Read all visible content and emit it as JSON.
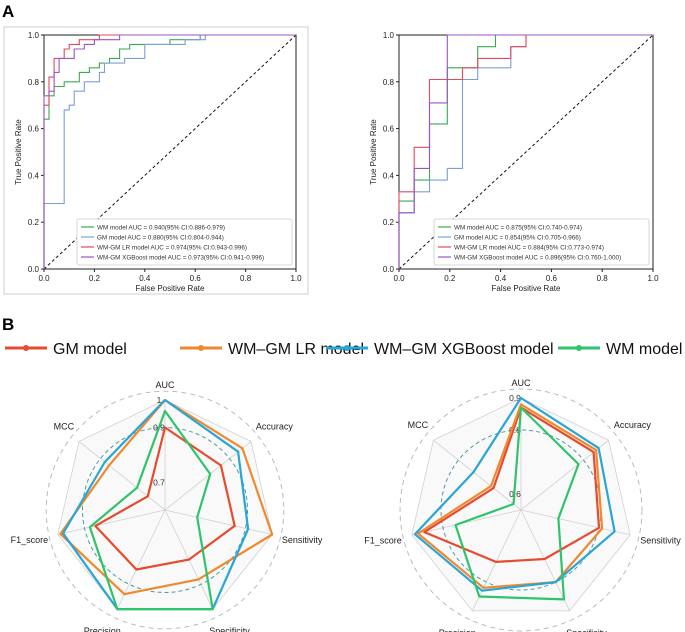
{
  "panels": {
    "a": "A",
    "b": "B"
  },
  "chart_data": [
    {
      "id": "roc-left",
      "type": "line",
      "xlabel": "False Positive Rate",
      "ylabel": "True Positive Rate",
      "xlim": [
        0,
        1
      ],
      "ylim": [
        0,
        1
      ],
      "xticks": [
        0.0,
        0.2,
        0.4,
        0.6,
        0.8,
        1.0
      ],
      "yticks": [
        0.0,
        0.2,
        0.4,
        0.6,
        0.8,
        1.0
      ],
      "xtick_labels": [
        "0.0",
        "0.2",
        "0.4",
        "0.6",
        "0.8",
        "1.0"
      ],
      "ytick_labels": [
        "0.0",
        "0.2",
        "0.4",
        "0.6",
        "0.8",
        "1.0"
      ],
      "legend_position": "bottom-right",
      "reference_line": "diagonal dashed",
      "series": [
        {
          "name": "WM model  AUC = 0.940(95% CI:0.886-0.979)",
          "color": "#3aaa55",
          "points": [
            [
              0,
              0
            ],
            [
              0,
              0.64
            ],
            [
              0.02,
              0.64
            ],
            [
              0.02,
              0.74
            ],
            [
              0.04,
              0.74
            ],
            [
              0.04,
              0.78
            ],
            [
              0.08,
              0.78
            ],
            [
              0.08,
              0.8
            ],
            [
              0.14,
              0.8
            ],
            [
              0.14,
              0.84
            ],
            [
              0.18,
              0.84
            ],
            [
              0.18,
              0.86
            ],
            [
              0.22,
              0.86
            ],
            [
              0.22,
              0.88
            ],
            [
              0.26,
              0.88
            ],
            [
              0.26,
              0.9
            ],
            [
              0.3,
              0.9
            ],
            [
              0.3,
              0.94
            ],
            [
              0.34,
              0.94
            ],
            [
              0.34,
              0.96
            ],
            [
              0.5,
              0.96
            ],
            [
              0.5,
              0.98
            ],
            [
              0.62,
              0.98
            ],
            [
              0.62,
              1
            ],
            [
              1,
              1
            ]
          ]
        },
        {
          "name": "GM model  AUC = 0.880(95% CI:0.804-0.944)",
          "color": "#7b9fd6",
          "points": [
            [
              0,
              0
            ],
            [
              0,
              0.28
            ],
            [
              0.08,
              0.28
            ],
            [
              0.08,
              0.68
            ],
            [
              0.1,
              0.68
            ],
            [
              0.1,
              0.7
            ],
            [
              0.12,
              0.7
            ],
            [
              0.12,
              0.76
            ],
            [
              0.16,
              0.76
            ],
            [
              0.16,
              0.8
            ],
            [
              0.22,
              0.8
            ],
            [
              0.22,
              0.84
            ],
            [
              0.24,
              0.84
            ],
            [
              0.24,
              0.88
            ],
            [
              0.32,
              0.88
            ],
            [
              0.32,
              0.9
            ],
            [
              0.4,
              0.9
            ],
            [
              0.4,
              0.96
            ],
            [
              0.56,
              0.96
            ],
            [
              0.56,
              0.98
            ],
            [
              0.64,
              0.98
            ],
            [
              0.64,
              1
            ],
            [
              1,
              1
            ]
          ]
        },
        {
          "name": "WM-GM LR model  AUC = 0.974(95% CI:0.943-0.996)",
          "color": "#e3495f",
          "points": [
            [
              0,
              0
            ],
            [
              0,
              0.7
            ],
            [
              0.02,
              0.7
            ],
            [
              0.02,
              0.82
            ],
            [
              0.04,
              0.82
            ],
            [
              0.04,
              0.9
            ],
            [
              0.08,
              0.9
            ],
            [
              0.08,
              0.94
            ],
            [
              0.1,
              0.94
            ],
            [
              0.1,
              0.96
            ],
            [
              0.14,
              0.96
            ],
            [
              0.14,
              0.98
            ],
            [
              0.22,
              0.98
            ],
            [
              0.22,
              1
            ],
            [
              1,
              1
            ]
          ]
        },
        {
          "name": "WM-GM XGBoost model  AUC = 0.973(95% CI:0.941-0.996)",
          "color": "#9a55c6",
          "points": [
            [
              0,
              0
            ],
            [
              0,
              0.74
            ],
            [
              0.02,
              0.74
            ],
            [
              0.02,
              0.76
            ],
            [
              0.04,
              0.76
            ],
            [
              0.04,
              0.84
            ],
            [
              0.06,
              0.84
            ],
            [
              0.06,
              0.9
            ],
            [
              0.12,
              0.9
            ],
            [
              0.12,
              0.94
            ],
            [
              0.16,
              0.94
            ],
            [
              0.16,
              0.96
            ],
            [
              0.2,
              0.96
            ],
            [
              0.2,
              0.98
            ],
            [
              0.3,
              0.98
            ],
            [
              0.3,
              1
            ],
            [
              1,
              1
            ]
          ]
        }
      ]
    },
    {
      "id": "roc-right",
      "type": "line",
      "xlabel": "False Positive Rate",
      "ylabel": "True Positive Rate",
      "xlim": [
        0,
        1
      ],
      "ylim": [
        0,
        1
      ],
      "xticks": [
        0.0,
        0.2,
        0.4,
        0.6,
        0.8,
        1.0
      ],
      "yticks": [
        0.0,
        0.2,
        0.4,
        0.6,
        0.8,
        1.0
      ],
      "xtick_labels": [
        "0.0",
        "0.2",
        "0.4",
        "0.6",
        "0.8",
        "1.0"
      ],
      "ytick_labels": [
        "0.0",
        "0.2",
        "0.4",
        "0.6",
        "0.8",
        "1.0"
      ],
      "legend_position": "bottom-right",
      "reference_line": "diagonal dashed",
      "series": [
        {
          "name": "WM model  AUC = 0.875(95% CI:0.740-0.974)",
          "color": "#3aaa55",
          "points": [
            [
              0,
              0
            ],
            [
              0,
              0.29
            ],
            [
              0.06,
              0.29
            ],
            [
              0.06,
              0.38
            ],
            [
              0.12,
              0.38
            ],
            [
              0.12,
              0.62
            ],
            [
              0.19,
              0.62
            ],
            [
              0.19,
              0.86
            ],
            [
              0.31,
              0.86
            ],
            [
              0.31,
              0.95
            ],
            [
              0.38,
              0.95
            ],
            [
              0.38,
              1
            ],
            [
              1,
              1
            ]
          ]
        },
        {
          "name": "GM model  AUC = 0.854(95% CI:0.705-0.966)",
          "color": "#7b9fd6",
          "points": [
            [
              0,
              0
            ],
            [
              0,
              0.24
            ],
            [
              0.06,
              0.24
            ],
            [
              0.06,
              0.33
            ],
            [
              0.12,
              0.33
            ],
            [
              0.12,
              0.38
            ],
            [
              0.19,
              0.38
            ],
            [
              0.19,
              0.43
            ],
            [
              0.25,
              0.43
            ],
            [
              0.25,
              0.81
            ],
            [
              0.31,
              0.81
            ],
            [
              0.31,
              0.86
            ],
            [
              0.44,
              0.86
            ],
            [
              0.44,
              0.95
            ],
            [
              0.5,
              0.95
            ],
            [
              0.5,
              1
            ],
            [
              1,
              1
            ]
          ]
        },
        {
          "name": "WM-GM LR model  AUC = 0.884(95% CI:0.773-0.974)",
          "color": "#e3495f",
          "points": [
            [
              0,
              0
            ],
            [
              0,
              0.33
            ],
            [
              0.06,
              0.33
            ],
            [
              0.06,
              0.52
            ],
            [
              0.12,
              0.52
            ],
            [
              0.12,
              0.81
            ],
            [
              0.25,
              0.81
            ],
            [
              0.25,
              0.86
            ],
            [
              0.31,
              0.86
            ],
            [
              0.31,
              0.9
            ],
            [
              0.44,
              0.9
            ],
            [
              0.44,
              0.95
            ],
            [
              0.5,
              0.95
            ],
            [
              0.5,
              1
            ],
            [
              1,
              1
            ]
          ]
        },
        {
          "name": "WM-GM XGBoost model  AUC = 0.896(95% CI:0.760-1.000)",
          "color": "#9a55c6",
          "points": [
            [
              0,
              0
            ],
            [
              0,
              0.24
            ],
            [
              0.06,
              0.24
            ],
            [
              0.06,
              0.43
            ],
            [
              0.12,
              0.43
            ],
            [
              0.12,
              0.71
            ],
            [
              0.19,
              0.71
            ],
            [
              0.19,
              1
            ],
            [
              1,
              1
            ]
          ]
        }
      ]
    },
    {
      "id": "radar-left",
      "type": "radar",
      "axes": [
        "AUC",
        "Accuracy",
        "Sensitivity",
        "Specificity",
        "Precision",
        "F1_score",
        "MCC"
      ],
      "range": [
        0.6,
        1.0
      ],
      "ring_labels": [
        {
          "value": 0.7,
          "label": "0.7"
        },
        {
          "value": 0.9,
          "label": "0.9"
        },
        {
          "value": 1.0,
          "label": "1"
        }
      ],
      "series": [
        {
          "name": "GM model",
          "color": "#e74a2e",
          "values": [
            0.9,
            0.86,
            0.86,
            0.8,
            0.84,
            0.86,
            0.68
          ]
        },
        {
          "name": "WM-GM LR model",
          "color": "#f0892e",
          "values": [
            1.0,
            0.96,
            1.0,
            0.88,
            0.94,
            0.99,
            0.86
          ]
        },
        {
          "name": "WM-GM XGBoost model",
          "color": "#2aa5d6",
          "values": [
            1.0,
            0.94,
            0.91,
            1.0,
            1.0,
            0.98,
            0.88
          ]
        },
        {
          "name": "WM model",
          "color": "#2fc46b",
          "values": [
            0.96,
            0.81,
            0.72,
            1.0,
            1.0,
            0.88,
            0.73
          ]
        }
      ]
    },
    {
      "id": "radar-right",
      "type": "radar",
      "axes": [
        "AUC",
        "Accuracy",
        "Sensitivity",
        "Specificity",
        "Precision",
        "F1_score",
        "MCC"
      ],
      "range": [
        0.55,
        0.9
      ],
      "ring_labels": [
        {
          "value": 0.6,
          "label": "0.6"
        },
        {
          "value": 0.8,
          "label": "0.8"
        },
        {
          "value": 0.9,
          "label": "0.9"
        }
      ],
      "series": [
        {
          "name": "GM model",
          "color": "#e74a2e",
          "values": [
            0.87,
            0.84,
            0.8,
            0.72,
            0.73,
            0.86,
            0.66
          ]
        },
        {
          "name": "WM-GM LR model",
          "color": "#f0892e",
          "values": [
            0.88,
            0.85,
            0.81,
            0.8,
            0.82,
            0.88,
            0.67
          ]
        },
        {
          "name": "WM-GM XGBoost model",
          "color": "#2aa5d6",
          "values": [
            0.9,
            0.86,
            0.85,
            0.8,
            0.83,
            0.89,
            0.74
          ]
        },
        {
          "name": "WM model",
          "color": "#2fc46b",
          "values": [
            0.87,
            0.78,
            0.67,
            0.86,
            0.85,
            0.76,
            0.58
          ]
        }
      ]
    }
  ],
  "radar_legend": [
    {
      "label": "GM model",
      "color": "#e74a2e"
    },
    {
      "label": "WM–GM LR model",
      "color": "#f0892e"
    },
    {
      "label": "WM–GM XGBoost model",
      "color": "#2aa5d6"
    },
    {
      "label": "WM model",
      "color": "#2fc46b"
    }
  ]
}
